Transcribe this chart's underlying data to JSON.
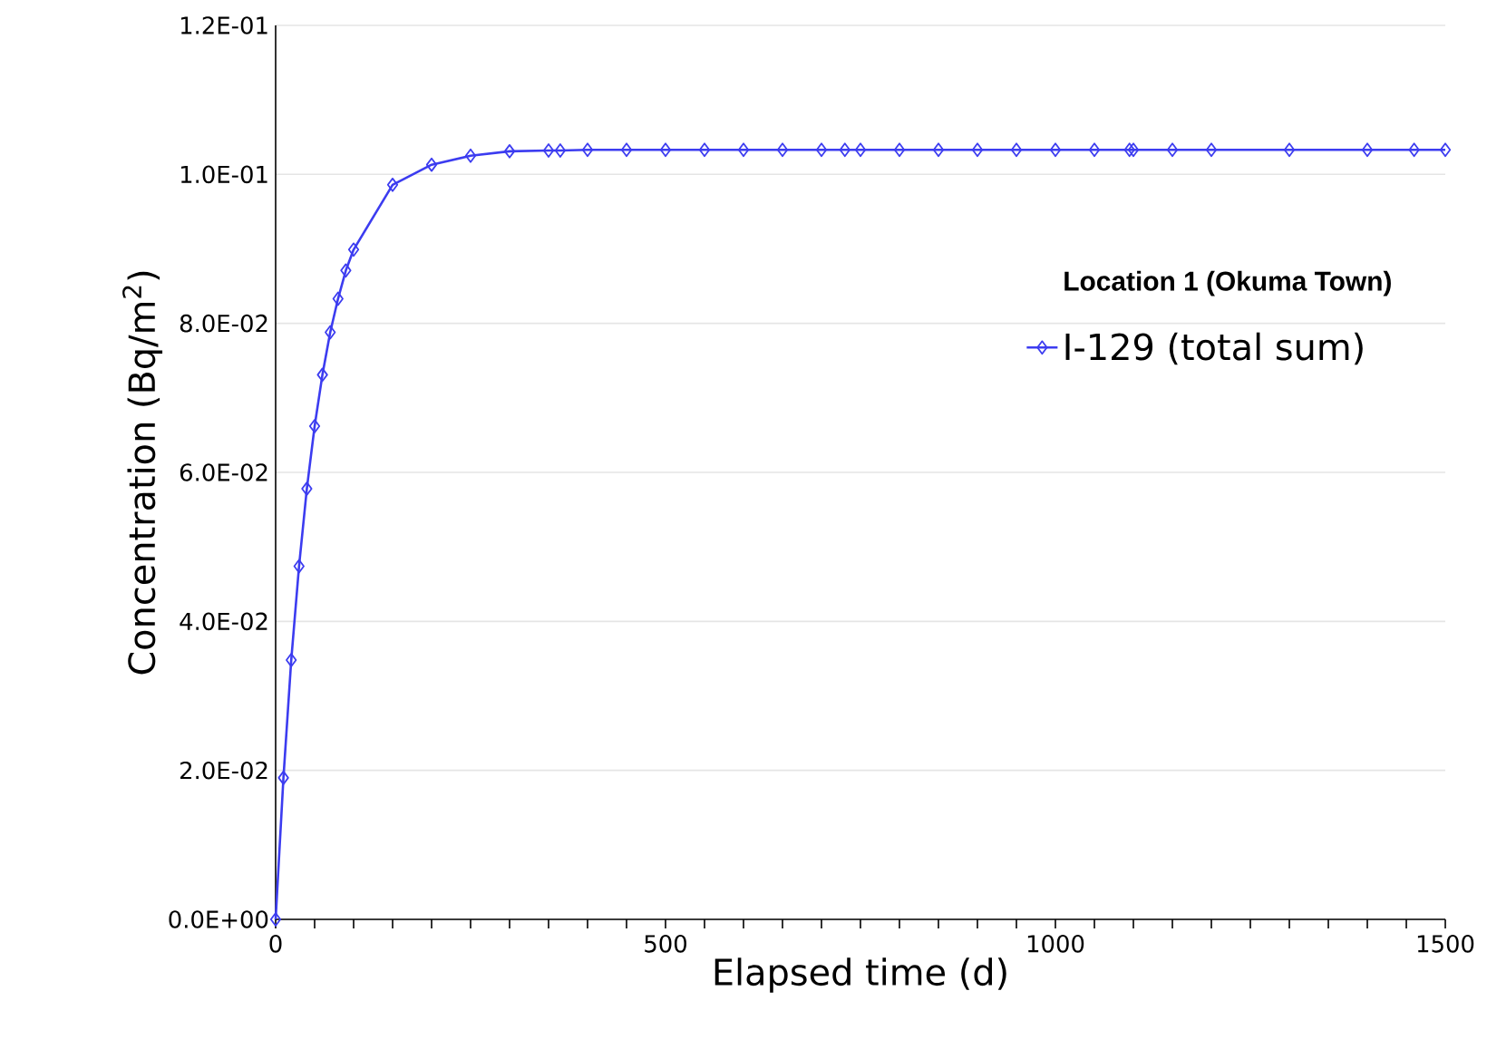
{
  "chart_data": {
    "type": "line",
    "xlabel": "Elapsed time (d)",
    "ylabel": "Concentration (Bq/m$^{2}$)",
    "legend_title": "Location 1 (Okuma Town)",
    "x": [
      0,
      10,
      20,
      30,
      40,
      50,
      60,
      70,
      80,
      90,
      100,
      150,
      200,
      250,
      300,
      350,
      365,
      400,
      450,
      500,
      550,
      600,
      650,
      700,
      730,
      750,
      800,
      850,
      900,
      950,
      1000,
      1050,
      1095,
      1100,
      1150,
      1200,
      1300,
      1400,
      1460,
      1500
    ],
    "series": [
      {
        "name": "I-129 (total sum)",
        "color": "#3c3cf0",
        "values": [
          0,
          0.019,
          0.0348,
          0.0474,
          0.0578,
          0.0662,
          0.0731,
          0.0788,
          0.0833,
          0.0871,
          0.0899,
          0.0986,
          0.1013,
          0.1025,
          0.1031,
          0.1032,
          0.1032,
          0.1033,
          0.1033,
          0.1033,
          0.1033,
          0.1033,
          0.1033,
          0.1033,
          0.1033,
          0.1033,
          0.1033,
          0.1033,
          0.1033,
          0.1033,
          0.1033,
          0.1033,
          0.1033,
          0.1033,
          0.1033,
          0.1033,
          0.1033,
          0.1033,
          0.1033,
          0.1033
        ]
      }
    ],
    "xlim": [
      0,
      1500
    ],
    "ylim": [
      0,
      0.12
    ],
    "xticks": [
      0,
      {
        "value": 50,
        "label": null
      },
      {
        "value": 100,
        "label": null
      },
      {
        "value": 150,
        "label": null
      },
      {
        "value": 200,
        "label": null
      },
      {
        "value": 250,
        "label": null
      },
      {
        "value": 300,
        "label": null
      },
      {
        "value": 350,
        "label": null
      },
      {
        "value": 400,
        "label": null
      },
      {
        "value": 450,
        "label": null
      },
      500,
      {
        "value": 550,
        "label": null
      },
      {
        "value": 600,
        "label": null
      },
      {
        "value": 650,
        "label": null
      },
      {
        "value": 700,
        "label": null
      },
      {
        "value": 750,
        "label": null
      },
      {
        "value": 800,
        "label": null
      },
      {
        "value": 850,
        "label": null
      },
      {
        "value": 900,
        "label": null
      },
      {
        "value": 950,
        "label": null
      },
      1000,
      {
        "value": 1050,
        "label": null
      },
      {
        "value": 1100,
        "label": null
      },
      {
        "value": 1150,
        "label": null
      },
      {
        "value": 1200,
        "label": null
      },
      {
        "value": 1250,
        "label": null
      },
      {
        "value": 1300,
        "label": null
      },
      {
        "value": 1350,
        "label": null
      },
      {
        "value": 1400,
        "label": null
      },
      {
        "value": 1450,
        "label": null
      },
      1500
    ],
    "yticks": [
      {
        "value": 0,
        "label": "0.0E+00"
      },
      {
        "value": 0.02,
        "label": "2.0E-02"
      },
      {
        "value": 0.04,
        "label": "4.0E-02"
      },
      {
        "value": 0.06,
        "label": "6.0E-02"
      },
      {
        "value": 0.08,
        "label": "8.0E-02"
      },
      {
        "value": 0.1,
        "label": "1.0E-01"
      },
      {
        "value": 0.12,
        "label": "1.2E-01"
      }
    ],
    "grid": "y",
    "legend": "top right",
    "marker": "diamond",
    "line_style": "solid"
  }
}
